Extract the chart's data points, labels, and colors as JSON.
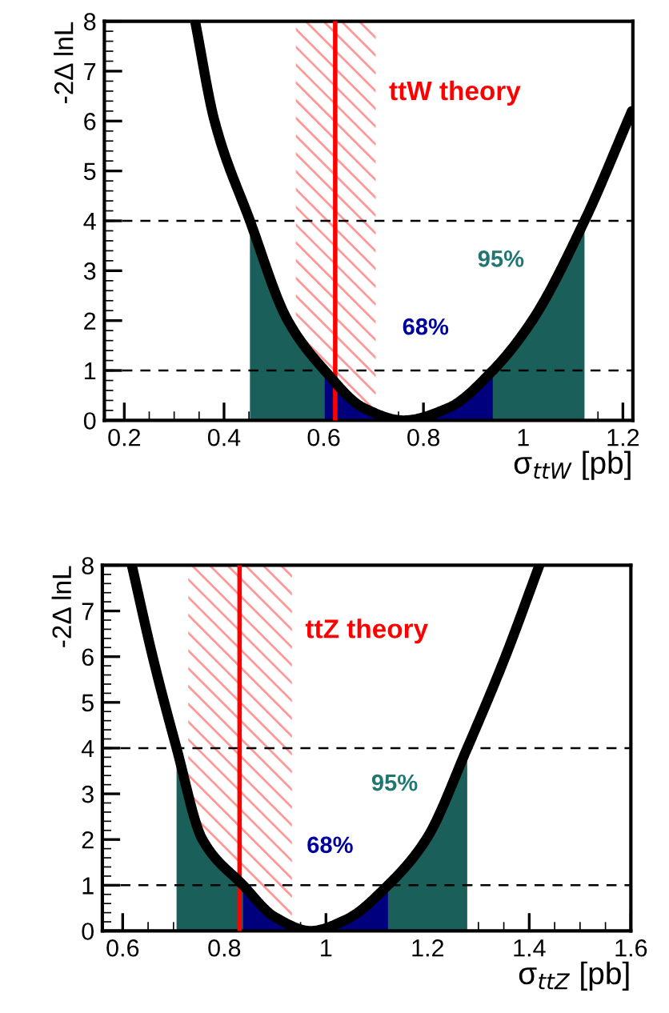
{
  "chart_data": [
    {
      "type": "line",
      "xlabel": "σ$_{ttW}$ [pb]",
      "ylabel": "-2Δ lnL",
      "xlim": [
        0.16,
        1.22
      ],
      "ylim": [
        0,
        8
      ],
      "xticks": [
        0.2,
        0.4,
        0.6,
        0.8,
        1,
        1.2
      ],
      "yticks": [
        0,
        1,
        2,
        3,
        4,
        5,
        6,
        7,
        8
      ],
      "grid": false,
      "legend": false,
      "series": [
        {
          "name": "95%",
          "type": "area",
          "color": "#1a5f5a",
          "x": [
            0.452,
            0.528,
            0.602,
            0.68,
            0.76,
            0.85,
            0.939,
            1.018,
            1.123
          ],
          "values": [
            4,
            2,
            1,
            0.25,
            0,
            0.25,
            1,
            2,
            4
          ]
        },
        {
          "name": "68%",
          "type": "area",
          "color": "#00007f",
          "x": [
            0.602,
            0.68,
            0.76,
            0.85,
            0.939
          ],
          "values": [
            1,
            0.25,
            0,
            0.25,
            1
          ]
        },
        {
          "color": "#000000",
          "x": [
            0.342,
            0.381,
            0.452,
            0.528,
            0.602,
            0.68,
            0.76,
            0.85,
            0.939,
            1.018,
            1.123,
            1.218
          ],
          "values": [
            8,
            6,
            4,
            2,
            1,
            0.25,
            0,
            0.25,
            1,
            2,
            4,
            6.2
          ]
        }
      ],
      "ref_lines": [
        {
          "axis": "y",
          "value": 1,
          "color": "#000000",
          "line_style": "dashed"
        },
        {
          "axis": "y",
          "value": 4,
          "color": "#000000",
          "line_style": "dashed"
        },
        {
          "axis": "x",
          "value": 0.623,
          "label": "ttW theory",
          "color": "#ff0000",
          "line_style": "solid"
        }
      ],
      "bands": [
        {
          "axis": "x",
          "from": 0.544,
          "to": 0.704,
          "color": "#ff9999"
        }
      ]
    },
    {
      "type": "line",
      "xlabel": "σ$_{ttZ}$ [pb]",
      "ylabel": "-2Δ lnL",
      "xlim": [
        0.56,
        1.6
      ],
      "ylim": [
        0,
        8
      ],
      "xticks": [
        0.6,
        0.8,
        1,
        1.2,
        1.4,
        1.6
      ],
      "yticks": [
        0,
        1,
        2,
        3,
        4,
        5,
        6,
        7,
        8
      ],
      "grid": false,
      "legend": false,
      "series": [
        {
          "name": "95%",
          "type": "area",
          "color": "#1a5f5a",
          "x": [
            0.706,
            0.757,
            0.837,
            0.9,
            0.97,
            1.04,
            1.122,
            1.197,
            1.278
          ],
          "values": [
            4,
            2,
            1,
            0.3,
            0,
            0.25,
            1,
            2,
            4
          ]
        },
        {
          "name": "68%",
          "type": "area",
          "color": "#00007f",
          "x": [
            0.837,
            0.9,
            0.97,
            1.04,
            1.122
          ],
          "values": [
            1,
            0.3,
            0,
            0.25,
            1
          ]
        },
        {
          "color": "#000000",
          "x": [
            0.618,
            0.659,
            0.706,
            0.757,
            0.837,
            0.9,
            0.97,
            1.04,
            1.122,
            1.197,
            1.278,
            1.353,
            1.42
          ],
          "values": [
            8,
            6,
            4,
            2,
            1,
            0.3,
            0,
            0.25,
            1,
            2,
            4,
            6,
            8
          ]
        }
      ],
      "ref_lines": [
        {
          "axis": "y",
          "value": 1,
          "color": "#000000",
          "line_style": "dashed"
        },
        {
          "axis": "y",
          "value": 4,
          "color": "#000000",
          "line_style": "dashed"
        },
        {
          "axis": "x",
          "value": 0.83,
          "label": "ttZ theory",
          "color": "#ff0000",
          "line_style": "solid"
        }
      ],
      "bands": [
        {
          "axis": "x",
          "from": 0.729,
          "to": 0.933,
          "color": "#ff9999"
        }
      ]
    }
  ]
}
